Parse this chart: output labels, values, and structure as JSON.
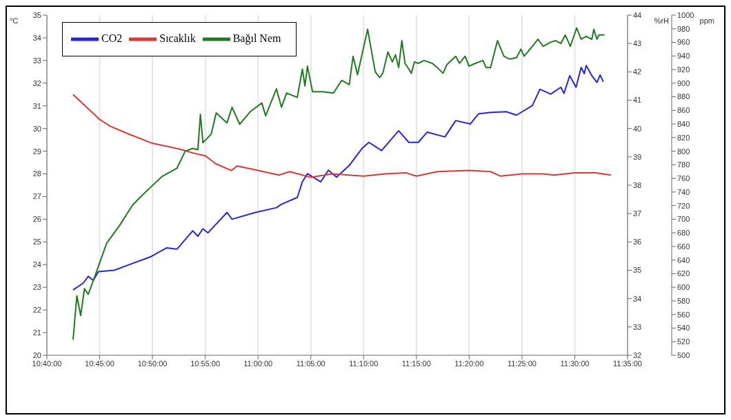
{
  "chart_data": {
    "type": "line",
    "ylabel": "°C",
    "y2label": "%rH",
    "y3label": "ppm",
    "xlim": [
      10.6667,
      11.5833
    ],
    "xticks": [
      {
        "value": 10.6667,
        "label": "10:40:00"
      },
      {
        "value": 10.75,
        "label": "10:45:00"
      },
      {
        "value": 10.8333,
        "label": "10:50:00"
      },
      {
        "value": 10.9167,
        "label": "10:55:00"
      },
      {
        "value": 11,
        "label": "11:00:00"
      },
      {
        "value": 11.0833,
        "label": "11:05:00"
      },
      {
        "value": 11.1667,
        "label": "11:10:00"
      },
      {
        "value": 11.25,
        "label": "11:15:00"
      },
      {
        "value": 11.3333,
        "label": "11:20:00"
      },
      {
        "value": 11.4167,
        "label": "11:25:00"
      },
      {
        "value": 11.5,
        "label": "11:30:00"
      },
      {
        "value": 11.5833,
        "label": "11:35:00"
      }
    ],
    "ylim": [
      20,
      35
    ],
    "yticks": [
      20,
      21,
      22,
      23,
      24,
      25,
      26,
      27,
      28,
      29,
      30,
      31,
      32,
      33,
      34,
      35
    ],
    "y2lim": [
      32,
      44
    ],
    "y2ticks": [
      32,
      33,
      34,
      35,
      36,
      37,
      38,
      39,
      40,
      41,
      42,
      43,
      44
    ],
    "y3lim": [
      500,
      1000
    ],
    "y3ticks": [
      500,
      520,
      540,
      560,
      580,
      600,
      620,
      640,
      660,
      680,
      700,
      720,
      740,
      760,
      780,
      800,
      820,
      840,
      860,
      880,
      900,
      920,
      940,
      960,
      980,
      1000
    ],
    "grid": "x",
    "legend": "top left",
    "marker": "none",
    "line_style": "solid",
    "series": [
      {
        "name": "CO2",
        "color": "#2424e0",
        "axis": "y3",
        "x": [
          10.708,
          10.724,
          10.732,
          10.74,
          10.748,
          10.773,
          10.79,
          10.831,
          10.856,
          10.872,
          10.897,
          10.905,
          10.913,
          10.921,
          10.951,
          10.959,
          10.996,
          11.029,
          11.037,
          11.062,
          11.07,
          11.078,
          11.099,
          11.111,
          11.124,
          11.144,
          11.165,
          11.175,
          11.195,
          11.222,
          11.238,
          11.253,
          11.267,
          11.295,
          11.312,
          11.335,
          11.348,
          11.368,
          11.392,
          11.408,
          11.433,
          11.445,
          11.462,
          11.478,
          11.483,
          11.492,
          11.502,
          11.51,
          11.515,
          11.518,
          11.527,
          11.535,
          11.54,
          11.545
        ],
        "values": [
          596,
          606,
          616,
          610,
          623,
          625,
          631,
          645,
          658,
          656,
          683,
          675,
          686,
          680,
          710,
          700,
          710,
          717,
          722,
          732,
          755,
          767,
          755,
          772,
          762,
          779,
          805,
          813,
          801,
          830,
          813,
          813,
          828,
          821,
          845,
          840,
          855,
          857,
          858,
          853,
          867,
          891,
          884,
          894,
          885,
          911,
          894,
          923,
          914,
          926,
          911,
          901,
          912,
          902
        ]
      },
      {
        "name": "Sıcaklık",
        "color": "#e03535",
        "x": [
          10.708,
          10.75,
          10.767,
          10.792,
          10.833,
          10.875,
          10.9,
          10.917,
          10.933,
          10.958,
          10.967,
          11.0,
          11.033,
          11.05,
          11.083,
          11.117,
          11.167,
          11.2,
          11.233,
          11.25,
          11.283,
          11.333,
          11.367,
          11.383,
          11.417,
          11.45,
          11.467,
          11.5,
          11.533,
          11.557
        ],
        "values": [
          31.5,
          30.4,
          30.1,
          29.8,
          29.35,
          29.1,
          28.9,
          28.8,
          28.45,
          28.15,
          28.35,
          28.15,
          27.95,
          28.1,
          27.85,
          28.0,
          27.9,
          28.0,
          28.05,
          27.9,
          28.1,
          28.15,
          28.1,
          27.9,
          28.0,
          28.0,
          27.95,
          28.05,
          28.05,
          27.95
        ]
      },
      {
        "name": "Bağıl Nem",
        "color": "#1e7a1e",
        "axis": "y2",
        "x": [
          10.708,
          10.714,
          10.72,
          10.726,
          10.732,
          10.745,
          10.761,
          10.782,
          10.802,
          10.815,
          10.829,
          10.848,
          10.872,
          10.885,
          10.897,
          10.905,
          10.909,
          10.913,
          10.926,
          10.934,
          10.951,
          10.959,
          10.971,
          10.988,
          11.006,
          11.012,
          11.029,
          11.037,
          11.045,
          11.062,
          11.07,
          11.074,
          11.078,
          11.086,
          11.103,
          11.119,
          11.132,
          11.144,
          11.15,
          11.157,
          11.173,
          11.185,
          11.192,
          11.197,
          11.205,
          11.212,
          11.217,
          11.222,
          11.227,
          11.232,
          11.238,
          11.242,
          11.247,
          11.253,
          11.262,
          11.275,
          11.283,
          11.292,
          11.298,
          11.312,
          11.318,
          11.327,
          11.333,
          11.343,
          11.355,
          11.36,
          11.367,
          11.378,
          11.388,
          11.397,
          11.408,
          11.415,
          11.42,
          11.433,
          11.442,
          11.45,
          11.462,
          11.47,
          11.478,
          11.485,
          11.493,
          11.503,
          11.51,
          11.518,
          11.527,
          11.53,
          11.535,
          11.538,
          11.547
        ],
        "values": [
          32.55,
          34.1,
          33.4,
          34.35,
          34.15,
          34.95,
          35.95,
          36.6,
          37.3,
          37.6,
          37.9,
          38.3,
          38.6,
          39.2,
          39.3,
          39.25,
          40.5,
          39.5,
          39.8,
          40.55,
          40.2,
          40.75,
          40.15,
          40.6,
          40.9,
          40.45,
          41.4,
          40.75,
          41.25,
          41.1,
          42.1,
          41.5,
          42.2,
          41.3,
          41.3,
          41.25,
          41.7,
          41.55,
          42.55,
          41.9,
          43.5,
          42.0,
          41.8,
          41.95,
          42.7,
          42.35,
          42.6,
          42.15,
          43.1,
          42.3,
          42.1,
          41.95,
          42.35,
          42.3,
          42.4,
          42.3,
          42.15,
          41.95,
          42.25,
          42.55,
          42.3,
          42.55,
          42.2,
          42.3,
          42.4,
          42.15,
          42.15,
          43.1,
          42.55,
          42.45,
          42.5,
          42.8,
          42.55,
          42.9,
          43.15,
          42.9,
          43.05,
          43.1,
          43.0,
          43.3,
          42.9,
          43.55,
          43.15,
          43.25,
          43.15,
          43.5,
          43.15,
          43.3,
          43.3
        ]
      }
    ]
  }
}
